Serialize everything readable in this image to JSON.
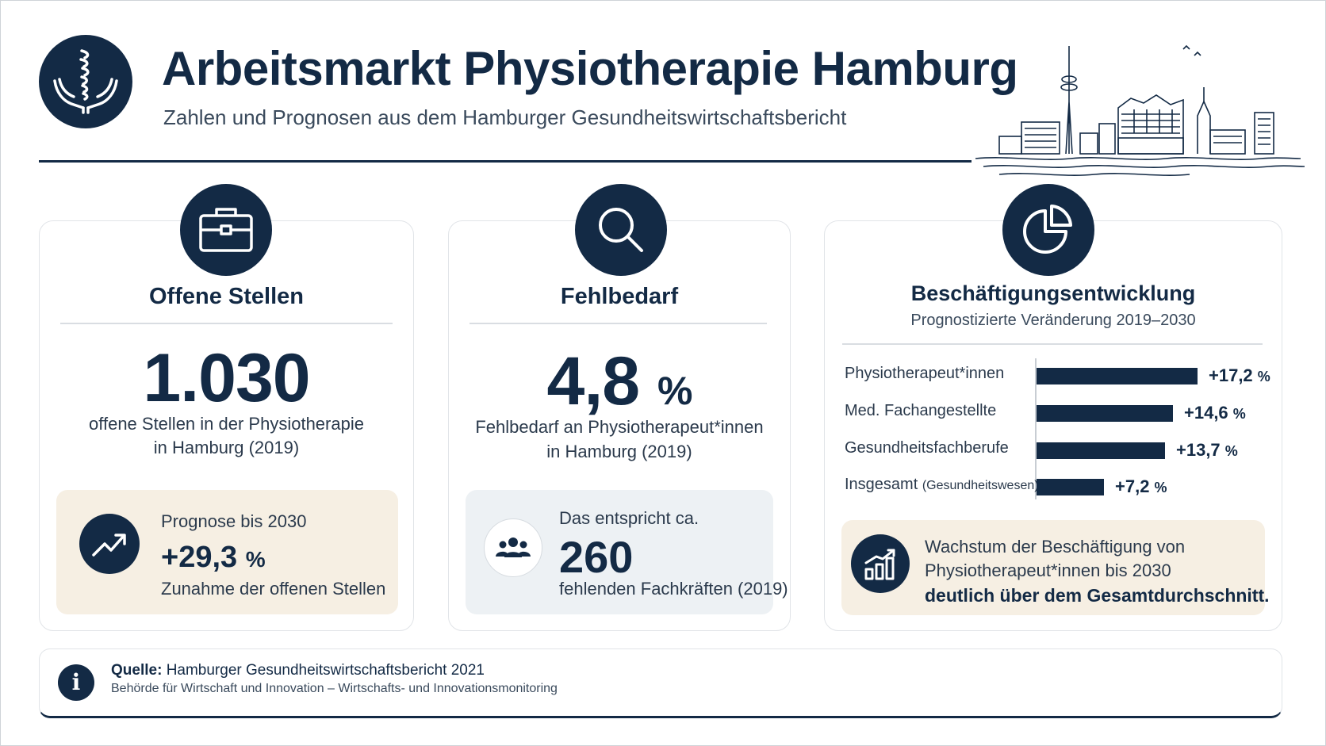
{
  "header": {
    "title": "Arbeitsmarkt Physiotherapie Hamburg",
    "subtitle": "Zahlen und Prognosen aus dem Hamburger Gesundheitswirtschaftsbericht",
    "logo_icon": "spine-hands-icon",
    "decoration": "hamburg-skyline-illustration"
  },
  "colors": {
    "navy": "#132a45",
    "beige_panel": "#f6efe3",
    "grey_panel": "#edf1f4",
    "card_border": "#e1e4e8"
  },
  "cards": {
    "open_positions": {
      "icon": "briefcase-icon",
      "title": "Offene Stellen",
      "value": "1.030",
      "desc_line1": "offene Stellen in der Physiotherapie",
      "desc_line2": "in Hamburg (2019)",
      "forecast": {
        "icon": "trend-up-icon",
        "label": "Prognose bis 2030",
        "value": "+29,3",
        "unit": "%",
        "caption": "Zunahme der offenen Stellen"
      }
    },
    "shortage": {
      "icon": "magnifier-icon",
      "title": "Fehlbedarf",
      "value": "4,8",
      "unit": "%",
      "desc_line1": "Fehlbedarf an Physiotherapeut*innen",
      "desc_line2": "in Hamburg (2019)",
      "equivalent": {
        "icon": "people-group-icon",
        "label": "Das entspricht ca.",
        "value": "260",
        "caption": "fehlenden Fachkräften (2019)"
      }
    },
    "employment": {
      "icon": "pie-chart-icon",
      "growth": {
        "icon": "bar-growth-icon",
        "line1": "Wachstum der Beschäftigung von",
        "line2": "Physiotherapeut*innen bis 2030",
        "line3": "deutlich über dem Gesamtdurchschnitt."
      }
    }
  },
  "chart_data": {
    "type": "bar",
    "orientation": "horizontal",
    "title": "Beschäftigungsentwicklung",
    "subtitle": "Prognostizierte Veränderung 2019–2030",
    "categories": [
      "Physiotherapeut*innen",
      "Med. Fachangestellte",
      "Gesundheitsfachberufe",
      "Insgesamt"
    ],
    "category_notes": [
      "",
      "",
      "",
      "(Gesundheitswesen)"
    ],
    "values": [
      17.2,
      14.6,
      13.7,
      7.2
    ],
    "value_labels": [
      "+17,2",
      "+14,6",
      "+13,7",
      "+7,2"
    ],
    "unit": "%",
    "xlim": [
      0,
      17.2
    ],
    "grid": false,
    "legend": "none"
  },
  "footer": {
    "icon": "info-icon",
    "source_label": "Quelle:",
    "source_text": "Hamburger Gesundheitswirtschaftsbericht 2021",
    "source_detail": "Behörde für Wirtschaft und Innovation – Wirtschafts- und Innovationsmonitoring"
  }
}
